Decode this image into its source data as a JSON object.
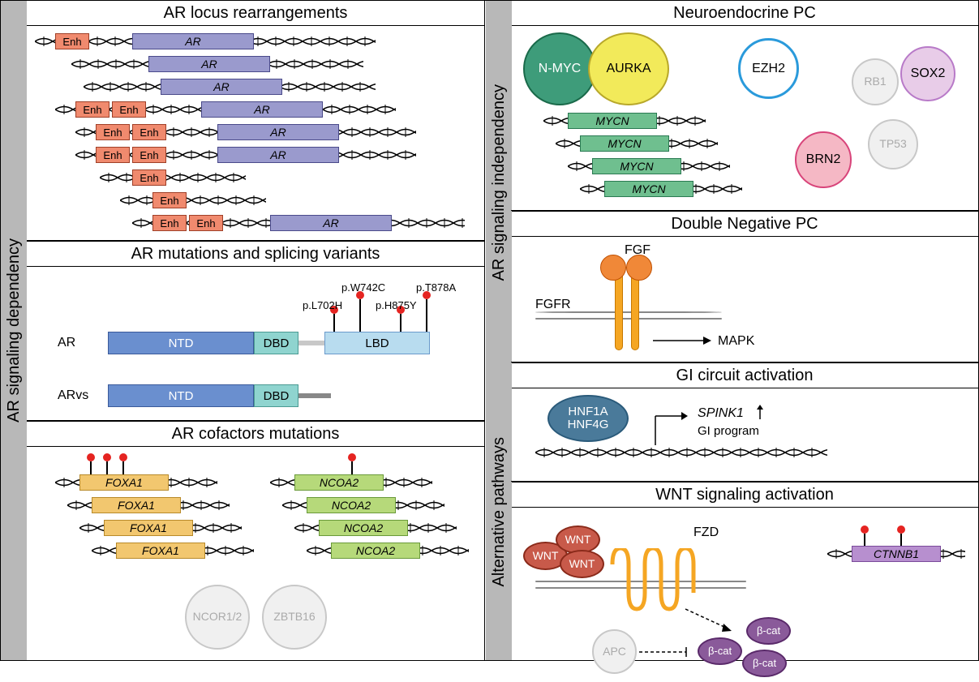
{
  "vbars": {
    "left": "AR signaling dependency",
    "right_top": "AR signaling independency",
    "right_bottom": "Alternative pathways"
  },
  "left_sections": {
    "s1": "AR locus rearrangements",
    "s2": "AR mutations and splicing variants",
    "s3": "AR cofactors mutations"
  },
  "right_sections": {
    "s1": "Neuroendocrine PC",
    "s2": "Double Negative PC",
    "s3": "GI circuit activation",
    "s4": "WNT signaling activation"
  },
  "colors": {
    "enh_fill": "#f08a6e",
    "enh_stroke": "#a04028",
    "ar_fill": "#9a9acd",
    "ar_stroke": "#4a4a8a",
    "mycn_fill": "#6fbf8f",
    "mycn_stroke": "#2a7a52",
    "foxa1_fill": "#f2c76f",
    "foxa1_stroke": "#b88a2a",
    "ncoa2_fill": "#b6d97a",
    "ncoa2_stroke": "#6a9a3a",
    "ctnnb1_fill": "#b78fcf",
    "ctnnb1_stroke": "#7a4a9a",
    "ntd_fill": "#6a8fcf",
    "dbd_fill": "#8fd4cf",
    "lbd_fill": "#b8dcef",
    "nmyc_fill": "#3e9c7a",
    "nmyc_stroke": "#1a6a4a",
    "aurka_fill": "#f2ea5a",
    "aurka_stroke": "#b8a82a",
    "ezh2_fill": "#fff",
    "ezh2_stroke": "#2a9adb",
    "sox2_fill": "#e8cce8",
    "sox2_stroke": "#b87ac8",
    "brn2_fill": "#f5b8c5",
    "brn2_stroke": "#d8447a",
    "rb1_fill": "#f0f0f0",
    "rb1_stroke": "#c8c8c8",
    "tp53_fill": "#f0f0f0",
    "tp53_stroke": "#c8c8c8",
    "ncor_fill": "#f0f0f0",
    "ncor_stroke": "#c8c8c8",
    "hnf_fill": "#4a7a9a",
    "hnf_stroke": "#2a5a7a",
    "wnt_fill": "#c85a4a",
    "wnt_stroke": "#8a2a1a",
    "bcat_fill": "#8a5a9a",
    "bcat_stroke": "#5a2a6a",
    "apc_fill": "#f0f0f0",
    "apc_stroke": "#c8c8c8",
    "fgf_fill": "#f08838"
  },
  "gene_labels": {
    "enh": "Enh",
    "ar": "AR",
    "mycn": "MYCN",
    "foxa1": "FOXA1",
    "ncoa2": "NCOA2",
    "ctnnb1": "CTNNB1"
  },
  "ar_mut": {
    "row1_label": "AR",
    "row2_label": "ARvs",
    "ntd": "NTD",
    "dbd": "DBD",
    "lbd": "LBD",
    "m1": "p.L702H",
    "m2": "p.W742C",
    "m3": "p.H875Y",
    "m4": "p.T878A"
  },
  "cofactors": {
    "ncor": "NCOR1/2",
    "zbtb": "ZBTB16"
  },
  "nepc_nodes": {
    "nmyc": "N-MYC",
    "aurka": "AURKA",
    "ezh2": "EZH2",
    "sox2": "SOX2",
    "brn2": "BRN2",
    "rb1": "RB1",
    "tp53": "TP53"
  },
  "dnpc": {
    "fgf": "FGF",
    "fgfr": "FGFR",
    "mapk": "MAPK"
  },
  "gi": {
    "hnf1a": "HNF1A",
    "hnf4g": "HNF4G",
    "spink1": "SPINK1",
    "gi_program": "GI program"
  },
  "wnt": {
    "wnt": "WNT",
    "fzd": "FZD",
    "apc": "APC",
    "bcat": "β-cat"
  }
}
